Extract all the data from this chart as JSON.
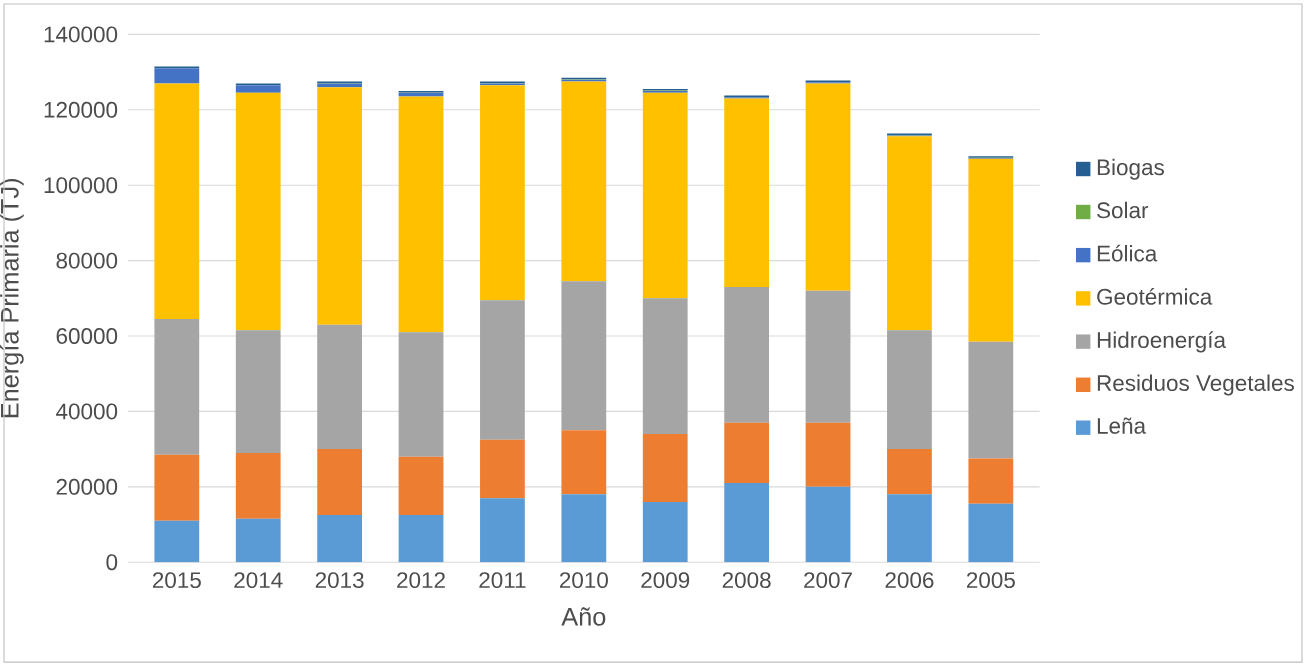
{
  "chart_data": {
    "type": "bar",
    "stacked": true,
    "xlabel": "Año",
    "ylabel": "Energía Primaria (TJ)",
    "categories": [
      "2015",
      "2014",
      "2013",
      "2012",
      "2011",
      "2010",
      "2009",
      "2008",
      "2007",
      "2006",
      "2005"
    ],
    "series": [
      {
        "name": "Leña",
        "color": "#5b9bd5",
        "values": [
          11000,
          11500,
          12500,
          12500,
          17000,
          18000,
          16000,
          21000,
          20000,
          18000,
          15500
        ]
      },
      {
        "name": "Residuos Vegetales",
        "color": "#ed7d31",
        "values": [
          17500,
          17500,
          17500,
          15500,
          15500,
          17000,
          18000,
          16000,
          17000,
          12000,
          12000
        ]
      },
      {
        "name": "Hidroenergía",
        "color": "#a5a5a5",
        "values": [
          36000,
          32500,
          33000,
          33000,
          37000,
          39500,
          36000,
          36000,
          35000,
          31500,
          31000
        ]
      },
      {
        "name": "Geotérmica",
        "color": "#ffc000",
        "values": [
          62500,
          63000,
          63000,
          62500,
          57000,
          53000,
          54500,
          50000,
          55000,
          51500,
          48500
        ]
      },
      {
        "name": "Eólica",
        "color": "#4472c4",
        "values": [
          4000,
          2000,
          1000,
          1000,
          500,
          500,
          500,
          300,
          300,
          200,
          200
        ]
      },
      {
        "name": "Solar",
        "color": "#70ad47",
        "values": [
          100,
          100,
          100,
          100,
          100,
          100,
          100,
          100,
          100,
          100,
          100
        ]
      },
      {
        "name": "Biogas",
        "color": "#255e91",
        "values": [
          400,
          400,
          400,
          400,
          400,
          400,
          400,
          400,
          400,
          400,
          400
        ]
      }
    ],
    "ylim": [
      0,
      140000
    ],
    "yticks": [
      0,
      20000,
      40000,
      60000,
      80000,
      100000,
      120000,
      140000
    ],
    "grid": "y",
    "legend": "right"
  }
}
